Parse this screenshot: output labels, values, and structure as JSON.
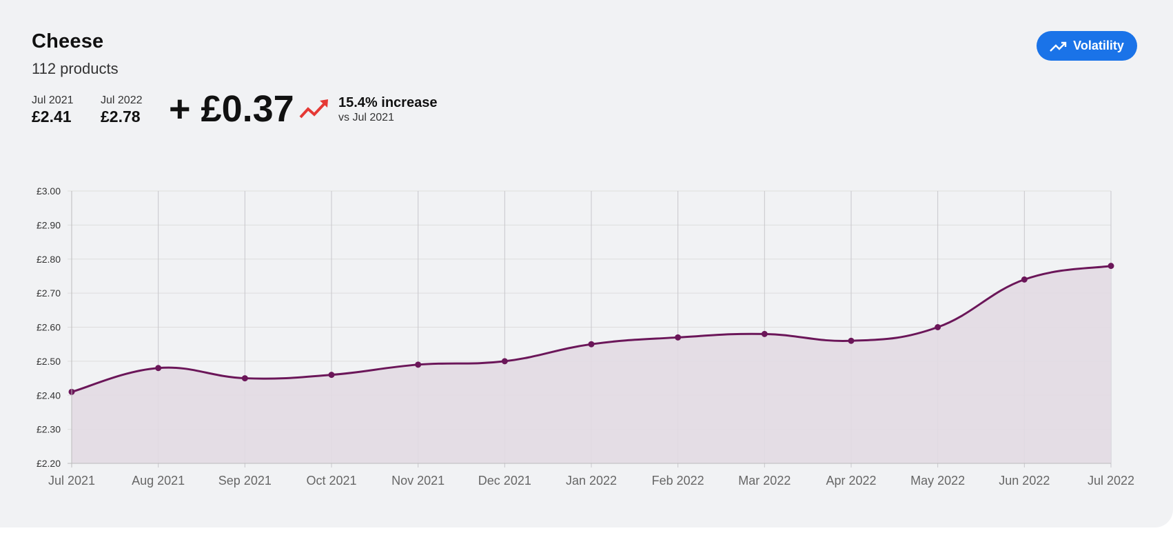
{
  "header": {
    "title": "Cheese",
    "subtitle": "112 products",
    "start_label": "Jul 2021",
    "start_price": "£2.41",
    "end_label": "Jul 2022",
    "end_price": "£2.78",
    "change": "+ £0.37",
    "trend_icon": "trending-up-icon",
    "percent_change": "15.4% increase",
    "comparison": "vs Jul 2021",
    "volatility_button": "Volatility"
  },
  "colors": {
    "line": "#6b1659",
    "fill": "#e2dae3",
    "trend_up": "#e53935",
    "button": "#1a73e8",
    "grid": "#dddddd",
    "vgrid": "#c8c6cb"
  },
  "chart_data": {
    "type": "area",
    "title": "",
    "xlabel": "",
    "ylabel": "",
    "categories": [
      "Jul 2021",
      "Aug 2021",
      "Sep 2021",
      "Oct 2021",
      "Nov 2021",
      "Dec 2021",
      "Jan 2022",
      "Feb 2022",
      "Mar 2022",
      "Apr 2022",
      "May 2022",
      "Jun 2022",
      "Jul 2022"
    ],
    "values": [
      2.41,
      2.48,
      2.45,
      2.46,
      2.49,
      2.5,
      2.55,
      2.57,
      2.58,
      2.56,
      2.6,
      2.74,
      2.78
    ],
    "ylim": [
      2.2,
      3.0
    ],
    "yticks": [
      3.0,
      2.9,
      2.8,
      2.7,
      2.6,
      2.5,
      2.4,
      2.3,
      2.2
    ],
    "ytick_labels": [
      "£3.00",
      "£2.90",
      "£2.80",
      "£2.70",
      "£2.60",
      "£2.50",
      "£2.40",
      "£2.30",
      "£2.20"
    ],
    "grid": true,
    "legend": "none"
  }
}
